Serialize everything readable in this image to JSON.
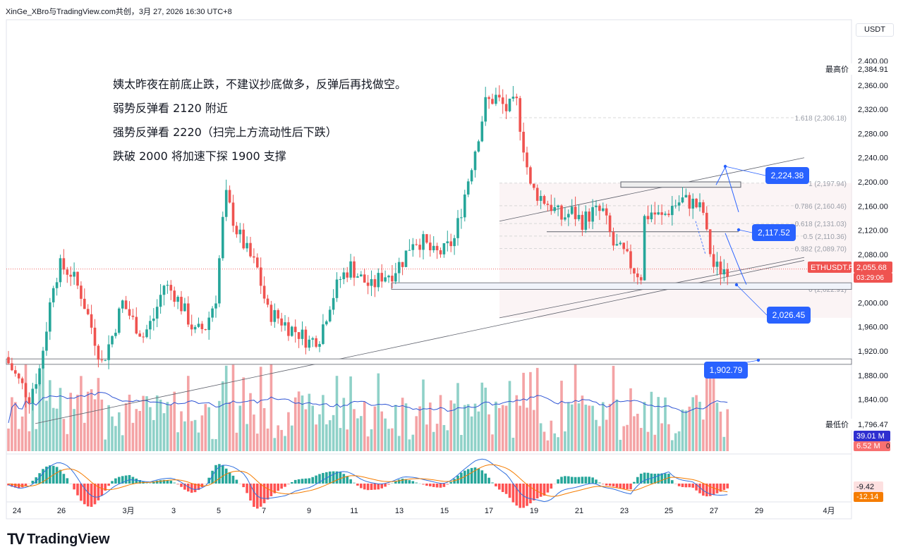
{
  "header": {
    "title": "XinGe_XBro与TradingView.com共创，3月 27, 2026 16:30 UTC+8"
  },
  "currency_button": "USDT",
  "annotations": [
    "姨太昨夜在前底止跌，不建议抄底做多，反弹后再找做空。",
    "弱势反弹看 2120 附近",
    "强势反弹看 2220（扫完上方流动性后下跌）",
    "跌破 2000 将加速下探 1900 支撑"
  ],
  "brand": {
    "logo": "TV",
    "name": "TradingView"
  },
  "colors": {
    "up": "#26a69a",
    "down": "#ef5350",
    "vol_up": "#8fd1c8",
    "vol_down": "#f4a3a5",
    "label_blue": "#2962ff",
    "ma": "#2f55d4",
    "macd": "#2f6fde",
    "signal": "#f57c00"
  },
  "chart_data": {
    "type": "candlestick",
    "symbol": "ETHUSDT.P",
    "y_axis": {
      "min": 1780,
      "max": 2410,
      "ticks": [
        2400,
        2360,
        2320,
        2280,
        2240,
        2200,
        2160,
        2120,
        2080,
        2040,
        2000,
        1960,
        1920,
        1880,
        1840,
        1800
      ]
    },
    "x_axis": {
      "labels": [
        "24",
        "26",
        "3月",
        "3",
        "5",
        "7",
        "9",
        "11",
        "13",
        "15",
        "17",
        "19",
        "21",
        "23",
        "25",
        "27",
        "29",
        "4月"
      ]
    },
    "last_price": {
      "label": "ETHUSDT.P",
      "value": "2,055.68",
      "countdown": "03:29:06"
    },
    "high_label": {
      "text": "最高价",
      "value": "2,384.91"
    },
    "low_label": {
      "text": "最低价",
      "value": "1,796.47"
    },
    "volume": {
      "ma_value": "39.01 M",
      "value": "6.52 M",
      "zero": "0"
    },
    "macd": {
      "macd_value": "-9.42",
      "signal_value": "-12.14"
    },
    "fib_levels": [
      {
        "label": "1.618 (2,306.18)",
        "price": 2306.18
      },
      {
        "label": "1 (2,197.94)",
        "price": 2197.94
      },
      {
        "label": "0.786 (2,160.46)",
        "price": 2160.46
      },
      {
        "label": "0.618 (2,131.03)",
        "price": 2131.03
      },
      {
        "label": "0.5 (2,110.36)",
        "price": 2110.36
      },
      {
        "label": "0.382 (2,089.70)",
        "price": 2089.7
      },
      {
        "label": "0 (2,022.91)",
        "price": 2022.91
      }
    ],
    "targets": [
      {
        "label": "2,224.38",
        "price": 2224.38
      },
      {
        "label": "2,117.52",
        "price": 2117.52
      },
      {
        "label": "2,026.45",
        "price": 2026.45
      },
      {
        "label": "1,902.79",
        "price": 1902.79
      }
    ],
    "ohlc_anchors": [
      [
        0,
        1900
      ],
      [
        3,
        1870
      ],
      [
        6,
        1845
      ],
      [
        9,
        1890
      ],
      [
        11,
        1960
      ],
      [
        13,
        2035
      ],
      [
        15,
        2060
      ],
      [
        18,
        2050
      ],
      [
        21,
        2015
      ],
      [
        24,
        1960
      ],
      [
        27,
        1900
      ],
      [
        30,
        1945
      ],
      [
        33,
        2000
      ],
      [
        36,
        1970
      ],
      [
        39,
        1945
      ],
      [
        42,
        1975
      ],
      [
        45,
        2030
      ],
      [
        48,
        2015
      ],
      [
        51,
        1985
      ],
      [
        54,
        1950
      ],
      [
        57,
        1960
      ],
      [
        60,
        2010
      ],
      [
        62,
        2135
      ],
      [
        63,
        2175
      ],
      [
        66,
        2120
      ],
      [
        69,
        2085
      ],
      [
        72,
        2055
      ],
      [
        75,
        1985
      ],
      [
        78,
        1975
      ],
      [
        81,
        1960
      ],
      [
        84,
        1950
      ],
      [
        87,
        1935
      ],
      [
        90,
        1945
      ],
      [
        93,
        2000
      ],
      [
        96,
        2040
      ],
      [
        99,
        2060
      ],
      [
        102,
        2040
      ],
      [
        105,
        2025
      ],
      [
        108,
        2045
      ],
      [
        111,
        2050
      ],
      [
        114,
        2070
      ],
      [
        117,
        2105
      ],
      [
        120,
        2100
      ],
      [
        123,
        2080
      ],
      [
        126,
        2085
      ],
      [
        129,
        2105
      ],
      [
        132,
        2180
      ],
      [
        135,
        2255
      ],
      [
        138,
        2330
      ],
      [
        141,
        2340
      ],
      [
        144,
        2320
      ],
      [
        147,
        2330
      ],
      [
        149,
        2260
      ],
      [
        151,
        2190
      ],
      [
        154,
        2175
      ],
      [
        157,
        2160
      ],
      [
        160,
        2140
      ],
      [
        163,
        2150
      ],
      [
        166,
        2135
      ],
      [
        169,
        2150
      ],
      [
        172,
        2150
      ],
      [
        175,
        2095
      ],
      [
        178,
        2080
      ],
      [
        181,
        2055
      ],
      [
        183,
        2045
      ],
      [
        184,
        2140
      ],
      [
        186,
        2150
      ],
      [
        189,
        2140
      ],
      [
        192,
        2160
      ],
      [
        195,
        2170
      ],
      [
        198,
        2165
      ],
      [
        201,
        2150
      ],
      [
        202,
        2110
      ],
      [
        204,
        2060
      ],
      [
        206,
        2055
      ],
      [
        208,
        2058
      ]
    ]
  }
}
